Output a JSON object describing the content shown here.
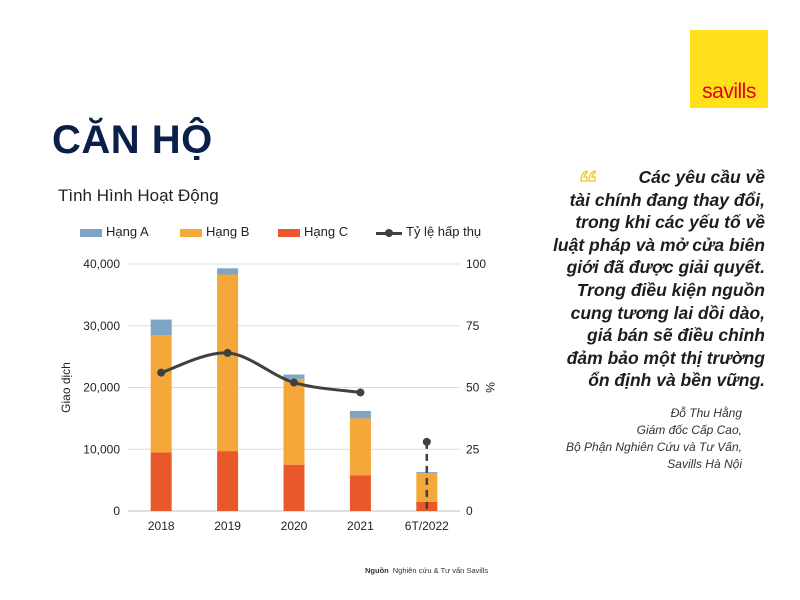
{
  "brand": {
    "logo_text": "savills",
    "logo_bg": "#FFE01B",
    "logo_fg": "#E2001A"
  },
  "page": {
    "title": "CĂN HỘ"
  },
  "chart_data": {
    "type": "bar",
    "stacked": true,
    "title": "Tình Hình Hoạt Động",
    "categories": [
      "2018",
      "2019",
      "2020",
      "2021",
      "6T/2022"
    ],
    "series": [
      {
        "name": "Hạng C",
        "color": "#E8582A",
        "values": [
          9500,
          9700,
          7500,
          5800,
          1500
        ]
      },
      {
        "name": "Hạng B",
        "color": "#F5A83A",
        "values": [
          19000,
          28600,
          13900,
          9200,
          4600
        ]
      },
      {
        "name": "Hạng A",
        "color": "#7FA4C4",
        "values": [
          2500,
          1000,
          700,
          1200,
          200
        ]
      }
    ],
    "line_series": {
      "name": "Tỷ lệ hấp thụ",
      "color": "#404040",
      "axis": "right",
      "values": [
        56,
        64,
        52,
        48
      ],
      "projected": {
        "category": "6T/2022",
        "value": 28
      }
    },
    "ylabel": "Giao dịch",
    "ylim": [
      0,
      40000
    ],
    "yticks": [
      "0",
      "10,000",
      "20,000",
      "30,000",
      "40,000"
    ],
    "y2label": "%",
    "y2lim": [
      0,
      100
    ],
    "y2ticks": [
      "0",
      "25",
      "50",
      "75",
      "100"
    ],
    "grid": true,
    "legend_position": "top",
    "legend_order": [
      "Hạng A",
      "Hạng B",
      "Hạng C",
      "Tỷ lệ hấp thụ"
    ]
  },
  "quote": {
    "lines": [
      "Các yêu cầu về",
      "tài chính đang thay đổi,",
      "trong khi các yếu tố về",
      "luật pháp và mở cửa biên",
      "giới đã được giải quyết.",
      "Trong điều kiện nguồn",
      "cung tương lai dồi dào,",
      "giá bán sẽ điều chỉnh",
      "đảm bảo một thị trường",
      "ổn định và bền vững."
    ],
    "author": "Đỗ Thu Hằng",
    "role": "Giám đốc Cấp Cao,",
    "department": "Bộ Phận Nghiên Cứu và Tư Vấn,",
    "company": "Savills Hà Nội",
    "mark_color": "#E8C81A"
  },
  "source": {
    "label": "Nguồn",
    "text": "Nghiên cứu & Tư vấn Savills"
  }
}
